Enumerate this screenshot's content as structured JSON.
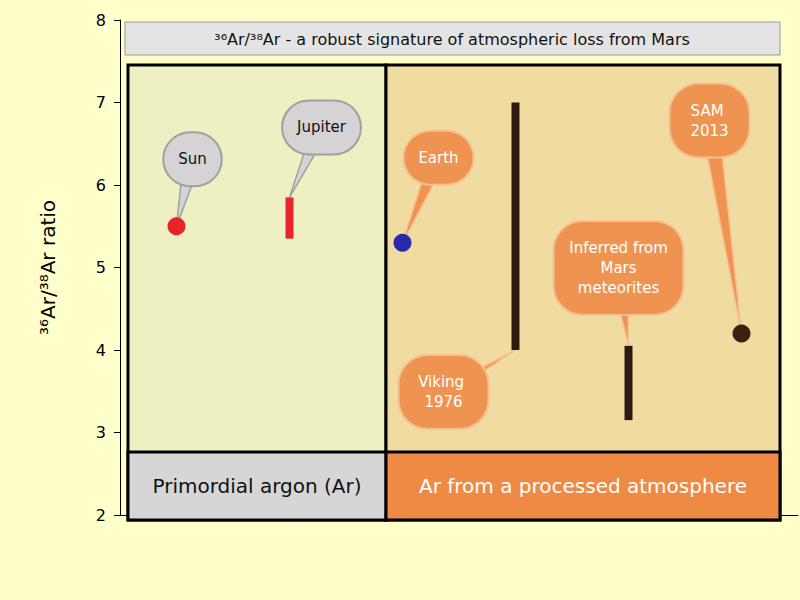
{
  "chart_data": {
    "type": "scatter",
    "title": "³⁶Ar/³⁸Ar - a robust signature of atmospheric loss from Mars",
    "y_label": "³⁶Ar/³⁸Ar ratio",
    "categories": [
      "Sun",
      "Jupiter",
      "Earth",
      "Viking 1976",
      "Inferred from Mars meteorites",
      "SAM 2013"
    ],
    "values": [
      5.5,
      null,
      5.3,
      null,
      null,
      4.2
    ],
    "ranges": [
      null,
      [
        5.35,
        5.85
      ],
      null,
      [
        4.0,
        7.0
      ],
      [
        3.15,
        4.05
      ],
      null
    ],
    "colors": [
      "#e8242a",
      "#e8242a",
      "#2a2aa8",
      "#2b1a10",
      "#2b1a10",
      "#3c2010"
    ],
    "groups": [
      {
        "label": "Primordial argon (Ar)",
        "categories": [
          "Sun",
          "Jupiter"
        ]
      },
      {
        "label": "Ar from a processed atmosphere",
        "categories": [
          "Earth",
          "Viking 1976",
          "Inferred from Mars meteorites",
          "SAM 2013"
        ]
      }
    ],
    "ylim": [
      2,
      8
    ],
    "yticks": [
      2,
      3,
      4,
      5,
      6,
      7,
      8
    ],
    "grid": false,
    "tick_labels": "y"
  }
}
